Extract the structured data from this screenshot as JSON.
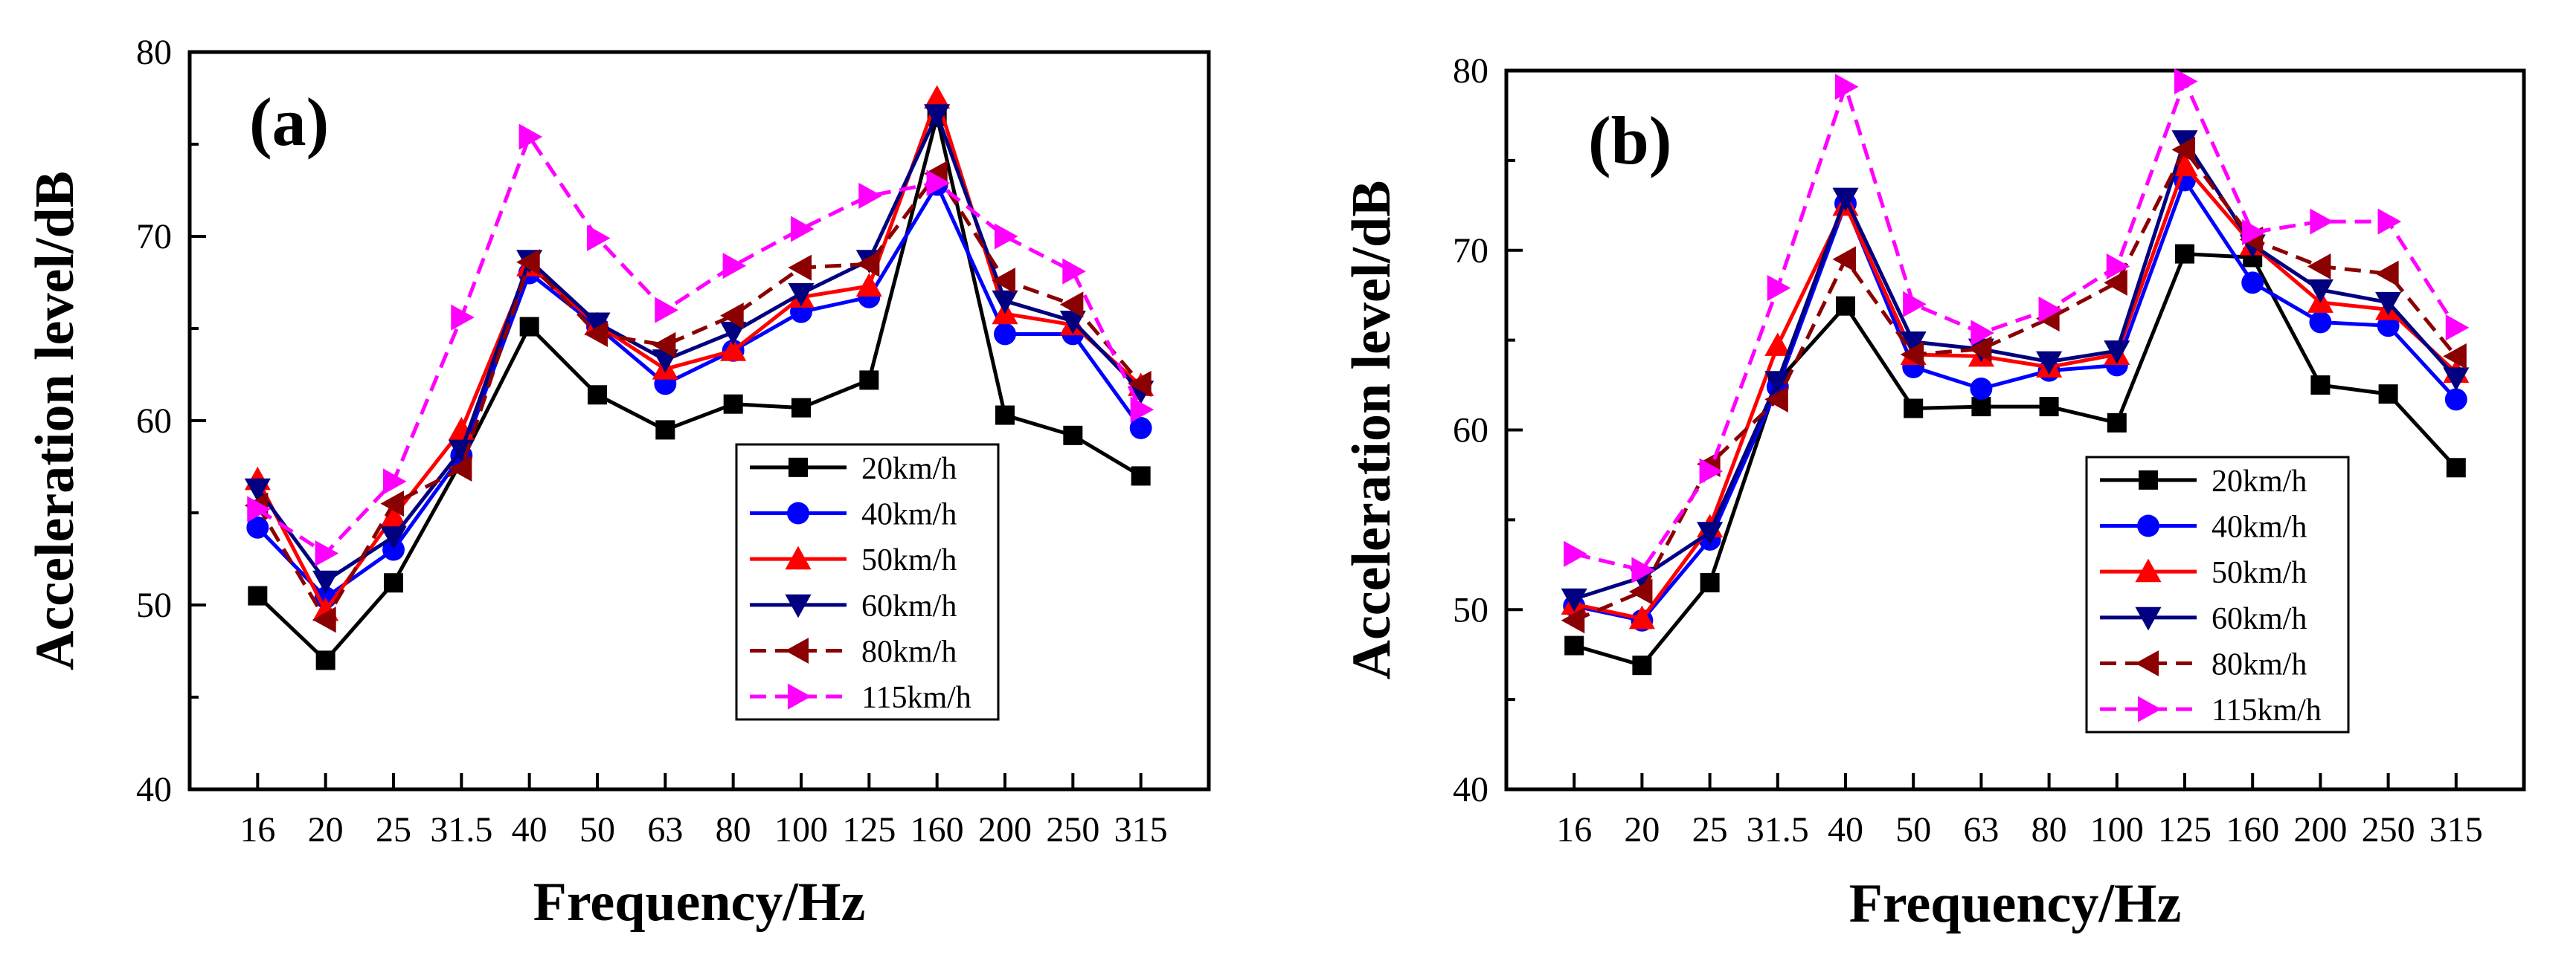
{
  "chart_data": [
    {
      "type": "line",
      "panel_label": "(a)",
      "xlabel": "Frequency/Hz",
      "ylabel": "Acceleration level/dB",
      "ylim": [
        40,
        80
      ],
      "yticks": [
        40,
        50,
        60,
        70,
        80
      ],
      "categories": [
        "16",
        "20",
        "25",
        "31.5",
        "40",
        "50",
        "63",
        "80",
        "100",
        "125",
        "160",
        "200",
        "250",
        "315"
      ],
      "legend_position": "lower-right",
      "series": [
        {
          "name": "20km/h",
          "color": "#000000",
          "marker": "square",
          "dash": "solid",
          "values": [
            50.5,
            47.0,
            51.2,
            57.8,
            65.1,
            61.4,
            59.5,
            60.9,
            60.7,
            62.2,
            76.5,
            60.3,
            59.2,
            57.0
          ]
        },
        {
          "name": "40km/h",
          "color": "#0000ff",
          "marker": "circle",
          "dash": "solid",
          "values": [
            54.2,
            50.4,
            53.0,
            58.1,
            68.0,
            65.1,
            62.0,
            63.8,
            65.9,
            66.7,
            72.8,
            64.7,
            64.7,
            59.6
          ]
        },
        {
          "name": "50km/h",
          "color": "#ff0000",
          "marker": "triangle-up",
          "dash": "solid",
          "values": [
            56.8,
            49.7,
            54.8,
            59.5,
            68.4,
            65.2,
            62.8,
            63.8,
            66.7,
            67.3,
            77.5,
            65.8,
            65.2,
            61.9
          ]
        },
        {
          "name": "60km/h",
          "color": "#000080",
          "marker": "triangle-down",
          "dash": "solid",
          "values": [
            56.3,
            51.3,
            53.7,
            58.4,
            68.7,
            65.3,
            63.3,
            64.8,
            66.9,
            68.7,
            76.6,
            66.5,
            65.4,
            61.6
          ]
        },
        {
          "name": "80km/h",
          "color": "#8b0000",
          "marker": "triangle-left",
          "dash": "dashed",
          "values": [
            55.4,
            49.2,
            55.5,
            57.4,
            68.6,
            64.7,
            64.1,
            65.7,
            68.3,
            68.5,
            73.4,
            67.6,
            66.3,
            62.0
          ]
        },
        {
          "name": "115km/h",
          "color": "#ff00ff",
          "marker": "triangle-right",
          "dash": "dashed",
          "values": [
            55.2,
            52.8,
            56.7,
            65.6,
            75.4,
            69.9,
            66.0,
            68.4,
            70.4,
            72.2,
            72.9,
            70.0,
            68.1,
            60.6
          ]
        }
      ]
    },
    {
      "type": "line",
      "panel_label": "(b)",
      "xlabel": "Frequency/Hz",
      "ylabel": "Acceleration level/dB",
      "ylim": [
        40,
        80
      ],
      "yticks": [
        40,
        50,
        60,
        70,
        80
      ],
      "categories": [
        "16",
        "20",
        "25",
        "31.5",
        "40",
        "50",
        "63",
        "80",
        "100",
        "125",
        "160",
        "200",
        "250",
        "315"
      ],
      "legend_position": "lower-right",
      "series": [
        {
          "name": "20km/h",
          "color": "#000000",
          "marker": "square",
          "dash": "solid",
          "values": [
            48.0,
            46.9,
            51.5,
            62.7,
            66.9,
            61.2,
            61.3,
            61.3,
            60.4,
            69.8,
            69.6,
            62.5,
            62.0,
            57.9
          ]
        },
        {
          "name": "40km/h",
          "color": "#0000ff",
          "marker": "circle",
          "dash": "solid",
          "values": [
            50.2,
            49.4,
            53.9,
            62.4,
            72.6,
            63.5,
            62.3,
            63.3,
            63.6,
            73.9,
            68.2,
            66.0,
            65.8,
            61.7
          ]
        },
        {
          "name": "50km/h",
          "color": "#ff0000",
          "marker": "triangle-up",
          "dash": "solid",
          "values": [
            50.3,
            49.5,
            54.6,
            64.7,
            72.5,
            64.2,
            64.1,
            63.5,
            64.2,
            74.7,
            70.3,
            67.1,
            66.7,
            63.2
          ]
        },
        {
          "name": "60km/h",
          "color": "#000080",
          "marker": "triangle-down",
          "dash": "solid",
          "values": [
            50.6,
            51.8,
            54.3,
            62.7,
            72.9,
            64.9,
            64.5,
            63.8,
            64.4,
            76.1,
            70.3,
            67.8,
            67.1,
            62.9
          ]
        },
        {
          "name": "80km/h",
          "color": "#8b0000",
          "marker": "triangle-left",
          "dash": "dashed",
          "values": [
            49.4,
            51.0,
            58.1,
            61.7,
            69.5,
            64.2,
            64.5,
            66.2,
            68.2,
            75.6,
            70.6,
            69.1,
            68.7,
            64.1
          ]
        },
        {
          "name": "115km/h",
          "color": "#ff00ff",
          "marker": "triangle-right",
          "dash": "dashed",
          "values": [
            53.1,
            52.2,
            57.7,
            67.9,
            79.1,
            67.0,
            65.4,
            66.7,
            69.1,
            79.4,
            71.0,
            71.6,
            71.6,
            65.7
          ]
        }
      ]
    }
  ]
}
